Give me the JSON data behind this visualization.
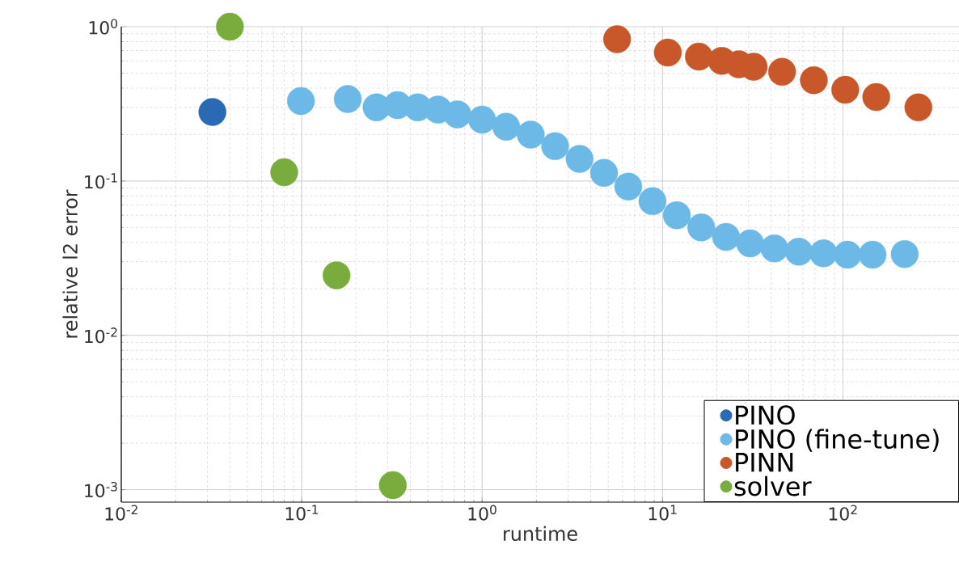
{
  "chart_data": {
    "type": "scatter",
    "xlabel": "runtime",
    "ylabel": "relative l2 error",
    "log": "xy",
    "grid": true,
    "legend": "bottom right",
    "marker": "circle",
    "xlim": [
      0.01,
      440
    ],
    "ylim": [
      0.00083,
      1
    ],
    "xticks": [
      {
        "value": 0.01,
        "label": "10$^{-2}$"
      },
      {
        "value": 0.1,
        "label": "10$^{-1}$"
      },
      {
        "value": 1,
        "label": "10$^{0}$"
      },
      {
        "value": 10,
        "label": "10$^{1}$"
      },
      {
        "value": 100,
        "label": "10$^{2}$"
      }
    ],
    "yticks": [
      {
        "value": 0.001,
        "label": "10$^{-3}$"
      },
      {
        "value": 0.01,
        "label": "10$^{-2}$"
      },
      {
        "value": 0.1,
        "label": "10$^{-1}$"
      },
      {
        "value": 1,
        "label": "10$^{0}$"
      }
    ],
    "series": [
      {
        "name": "PINO",
        "color": "#2a6ab4",
        "x": [
          0.032
        ],
        "values": [
          0.28
        ]
      },
      {
        "name": "PINO (fine-tune)",
        "color": "#6cb8e6",
        "x": [
          0.099,
          0.18,
          0.26,
          0.34,
          0.44,
          0.57,
          0.73,
          1.0,
          1.36,
          1.86,
          2.54,
          3.47,
          4.74,
          6.46,
          8.8,
          12.0,
          16.4,
          22.5,
          30.6,
          41.7,
          57,
          78,
          106,
          146,
          220
        ],
        "values": [
          0.33,
          0.34,
          0.3,
          0.31,
          0.3,
          0.29,
          0.27,
          0.25,
          0.225,
          0.2,
          0.168,
          0.139,
          0.113,
          0.092,
          0.074,
          0.06,
          0.05,
          0.0434,
          0.0394,
          0.0366,
          0.0348,
          0.034,
          0.0333,
          0.0333,
          0.0336
        ]
      },
      {
        "name": "PINN",
        "color": "#c8582a",
        "x": [
          5.6,
          10.7,
          15.9,
          21.3,
          26.5,
          32,
          46,
          69,
          103,
          153,
          262
        ],
        "values": [
          0.83,
          0.68,
          0.64,
          0.6,
          0.57,
          0.55,
          0.51,
          0.45,
          0.39,
          0.35,
          0.3
        ]
      },
      {
        "name": "solver",
        "color": "#7aab3d",
        "x": [
          0.04,
          0.08,
          0.156,
          0.32
        ],
        "values": [
          1.0,
          0.114,
          0.0245,
          0.00107
        ]
      }
    ]
  }
}
